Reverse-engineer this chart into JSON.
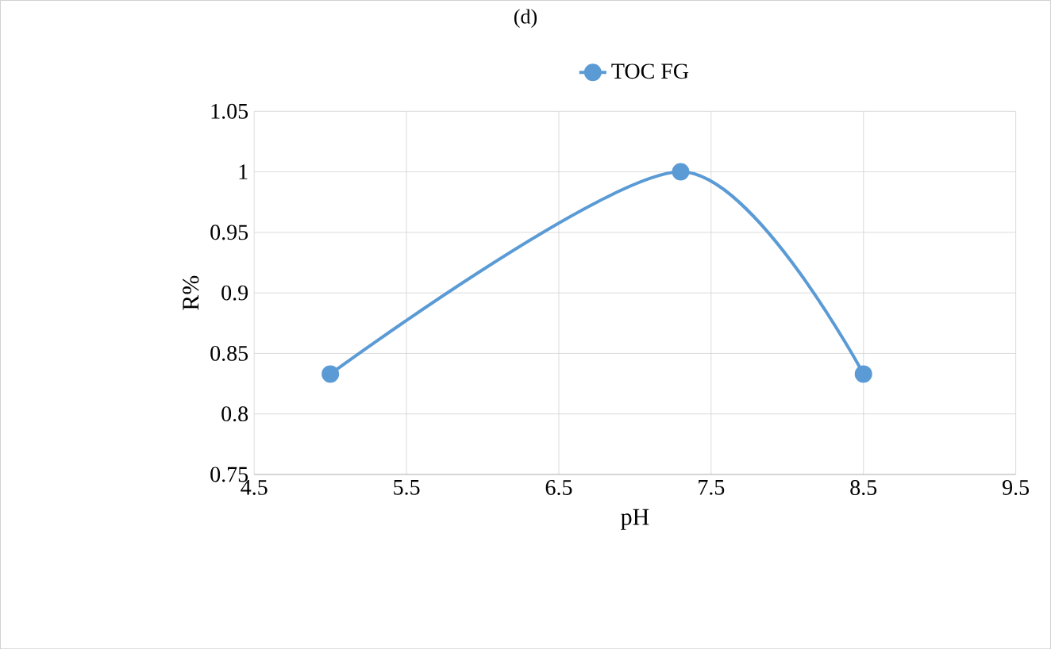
{
  "chart_data": {
    "type": "line",
    "title": "(d)",
    "xlabel": "pH",
    "ylabel": "R%",
    "x": [
      5,
      7.3,
      8.5
    ],
    "series": [
      {
        "name": "TOC FG",
        "color": "#5b9bd5",
        "values": [
          0.833,
          1.0,
          0.833
        ]
      }
    ],
    "xlim": [
      4.5,
      9.5
    ],
    "xticks": [
      4.5,
      5.5,
      6.5,
      7.5,
      8.5,
      9.5
    ],
    "ylim": [
      0.75,
      1.05
    ],
    "yticks": [
      0.75,
      0.8,
      0.85,
      0.9,
      0.95,
      1,
      1.05
    ],
    "grid": true,
    "legend": "top",
    "marker": "circle",
    "line_style": "solid"
  }
}
